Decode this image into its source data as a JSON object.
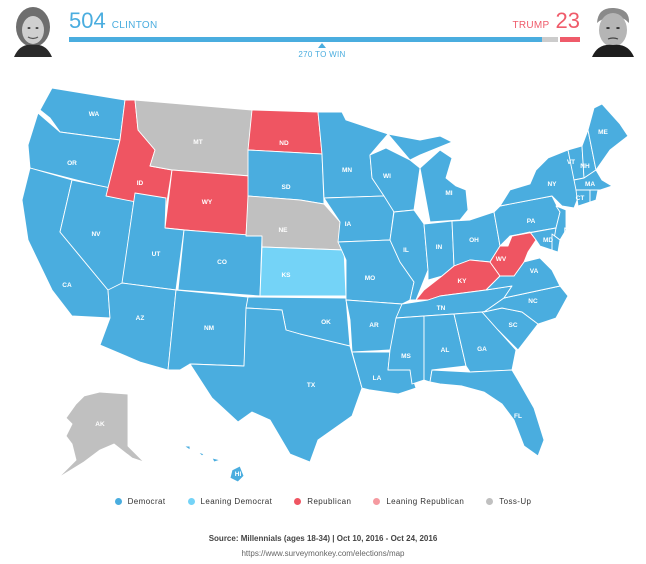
{
  "header": {
    "clinton": {
      "votes": "504",
      "name": "CLINTON"
    },
    "trump": {
      "votes": "23",
      "name": "TRUMP"
    },
    "threshold_label": "270 TO WIN",
    "bar": {
      "democrat_pct": 92.6,
      "tossup_pct": 3.0,
      "gap_pct": 0.5,
      "republican_pct": 3.9
    }
  },
  "colors": {
    "democrat": "#4aaddf",
    "leaning_democrat": "#74d3f7",
    "republican": "#ef5562",
    "leaning_republican": "#f59aa0",
    "tossup": "#c0c0c0"
  },
  "map": {
    "states": {
      "WA": "democrat",
      "OR": "democrat",
      "CA": "democrat",
      "NV": "democrat",
      "ID": "republican",
      "MT": "tossup",
      "WY": "republican",
      "UT": "democrat",
      "AZ": "democrat",
      "CO": "democrat",
      "NM": "democrat",
      "ND": "republican",
      "SD": "democrat",
      "NE": "tossup",
      "KS": "leaning_democrat",
      "OK": "democrat",
      "TX": "democrat",
      "MN": "democrat",
      "IA": "democrat",
      "MO": "democrat",
      "AR": "democrat",
      "LA": "democrat",
      "WI": "democrat",
      "IL": "democrat",
      "MI": "democrat",
      "IN": "democrat",
      "OH": "democrat",
      "KY": "republican",
      "TN": "democrat",
      "MS": "democrat",
      "AL": "democrat",
      "GA": "democrat",
      "FL": "democrat",
      "SC": "democrat",
      "NC": "democrat",
      "VA": "democrat",
      "WV": "republican",
      "PA": "democrat",
      "NY": "democrat",
      "VT": "democrat",
      "NH": "democrat",
      "ME": "democrat",
      "MA": "democrat",
      "CT": "democrat",
      "NJ": "democrat",
      "MD": "democrat",
      "DE": "democrat",
      "RI": "democrat",
      "AK": "tossup",
      "HI": "democrat"
    }
  },
  "legend": [
    {
      "label": "Democrat",
      "key": "democrat"
    },
    {
      "label": "Leaning Democrat",
      "key": "leaning_democrat"
    },
    {
      "label": "Republican",
      "key": "republican"
    },
    {
      "label": "Leaning Republican",
      "key": "leaning_republican"
    },
    {
      "label": "Toss-Up",
      "key": "tossup"
    }
  ],
  "footer": {
    "source": "Source: Millennials (ages 18-34) | Oct 10, 2016 - Oct 24, 2016",
    "url": "https://www.surveymonkey.com/elections/map"
  }
}
